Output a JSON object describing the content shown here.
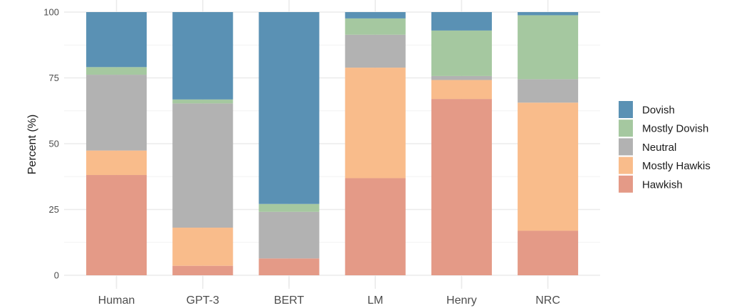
{
  "chart_data": {
    "type": "bar",
    "stacked": true,
    "title": "",
    "xlabel": "",
    "ylabel": "Percent (%)",
    "ylim": [
      0,
      100
    ],
    "yticks": [
      "0",
      "25",
      "50",
      "75",
      "100"
    ],
    "ytick_values": [
      0,
      25,
      50,
      75,
      100
    ],
    "grid": true,
    "legend_position": "right",
    "categories": [
      "Human",
      "GPT-3",
      "BERT",
      "LM",
      "Henry",
      "NRC"
    ],
    "series": [
      {
        "name": "Hawkish",
        "color": "#e49a87",
        "values": [
          38.1,
          3.6,
          6.4,
          36.9,
          67.0,
          16.9
        ]
      },
      {
        "name": "Mostly Hawkis",
        "color": "#f9bc8b",
        "values": [
          9.3,
          14.5,
          0.0,
          42.0,
          7.2,
          48.7
        ]
      },
      {
        "name": "Neutral",
        "color": "#b2b2b2",
        "values": [
          28.8,
          47.2,
          17.7,
          12.5,
          1.5,
          8.9
        ]
      },
      {
        "name": "Mostly Dovish",
        "color": "#a5c8a0",
        "values": [
          2.9,
          1.5,
          3.0,
          6.2,
          17.3,
          24.3
        ]
      },
      {
        "name": "Dovish",
        "color": "#5a91b4",
        "values": [
          20.9,
          33.2,
          72.9,
          2.4,
          7.0,
          1.2
        ]
      }
    ],
    "legend_order": [
      "Dovish",
      "Mostly Dovish",
      "Neutral",
      "Mostly Hawkis",
      "Hawkish"
    ]
  }
}
